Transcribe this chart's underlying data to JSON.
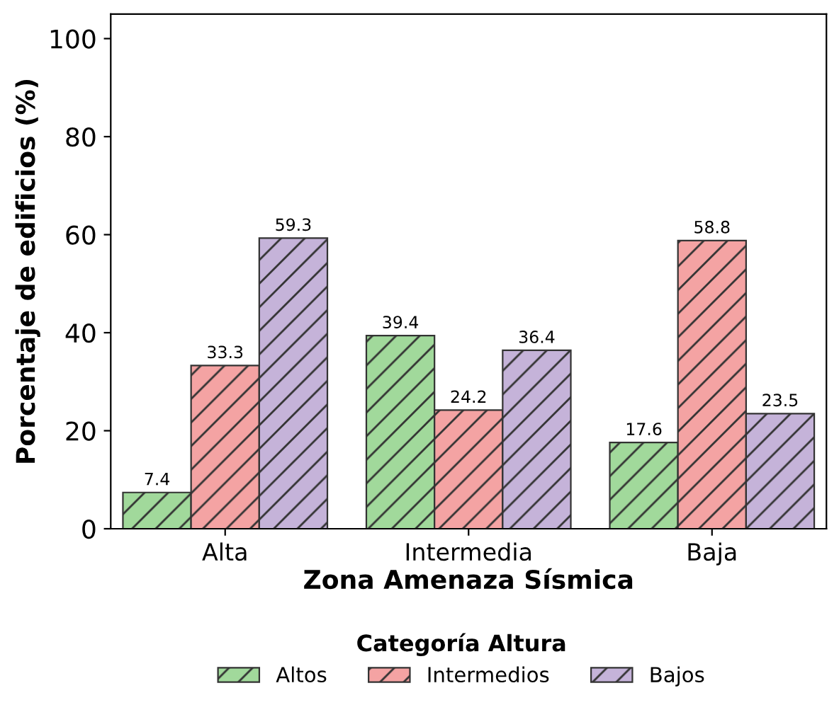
{
  "chart_data": {
    "type": "bar",
    "xlabel": "Zona Amenaza Sísmica",
    "ylabel": "Porcentaje de edificios (%)",
    "legend_title": "Categoría Altura",
    "categories": [
      "Alta",
      "Intermedia",
      "Baja"
    ],
    "series": [
      {
        "name": "Altos",
        "color": "#a1d99b",
        "values": [
          7.4,
          39.4,
          17.6
        ]
      },
      {
        "name": "Intermedios",
        "color": "#f4a3a3",
        "values": [
          33.3,
          24.2,
          58.8
        ]
      },
      {
        "name": "Bajos",
        "color": "#c5b3d9",
        "values": [
          59.3,
          36.4,
          23.5
        ]
      }
    ],
    "ylim": [
      0,
      105
    ],
    "yticks": [
      0,
      20,
      40,
      60,
      80,
      100
    ],
    "grid": false,
    "legend": "bottom",
    "data_labels": true
  }
}
